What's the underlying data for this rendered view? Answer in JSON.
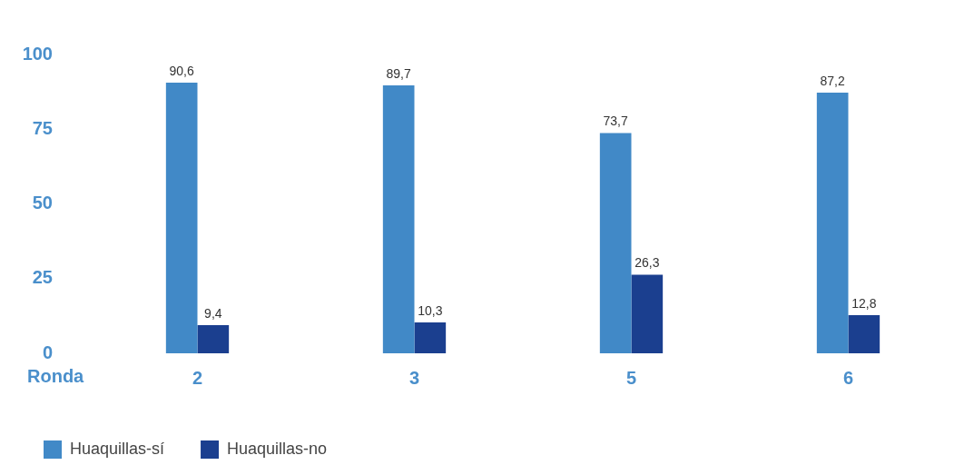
{
  "chart_data": {
    "type": "bar",
    "xlabel": "Ronda",
    "categories": [
      "2",
      "3",
      "5",
      "6"
    ],
    "series": [
      {
        "name": "Huaquillas-sí",
        "color": "#4189c7",
        "values": [
          90.6,
          89.7,
          73.7,
          87.2
        ],
        "value_labels": [
          "90,6",
          "89,7",
          "73,7",
          "87,2"
        ]
      },
      {
        "name": "Huaquillas-no",
        "color": "#1b3f8f",
        "values": [
          9.4,
          10.3,
          26.3,
          12.8
        ],
        "value_labels": [
          "9,4",
          "10,3",
          "26,3",
          "12,8"
        ]
      }
    ],
    "ylim": [
      0,
      100
    ],
    "yticks": [
      0,
      25,
      50,
      75,
      100
    ],
    "grid": false,
    "legend": "bottom left"
  }
}
